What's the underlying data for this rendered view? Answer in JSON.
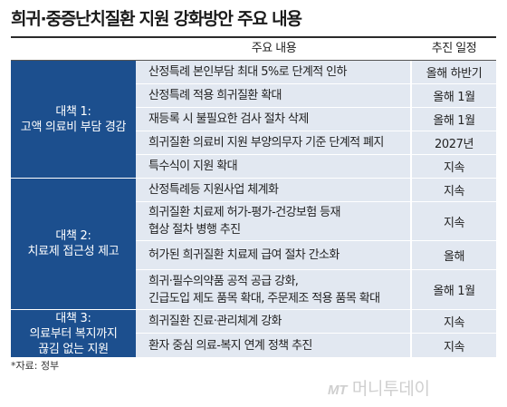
{
  "title": "희귀·중증난치질환 지원 강화방안 주요 내용",
  "header": {
    "content": "주요 내용",
    "schedule": "추진 일정"
  },
  "categories": [
    {
      "label": "대책 1:\n고액 의료비 부담 경감"
    },
    {
      "label": "대책 2:\n치료제 접근성 제고"
    },
    {
      "label": "대책 3:\n의료부터 복지까지\n끊김 없는 지원"
    }
  ],
  "rows": [
    {
      "content": "산정특례 본인부담 최대 5%로 단계적 인하",
      "schedule": "올해 하반기"
    },
    {
      "content": "산정특례 적용 희귀질환 확대",
      "schedule": "올해 1월"
    },
    {
      "content": "재등록 시 불필요한 검사 절차 삭제",
      "schedule": "올해 1월"
    },
    {
      "content": "희귀질환 의료비 지원 부양의무자 기준 단계적 폐지",
      "schedule": "2027년"
    },
    {
      "content": "특수식이 지원 확대",
      "schedule": "지속"
    },
    {
      "content": "산정특례등 지원사업 체계화",
      "schedule": "지속"
    },
    {
      "content": "희귀질환 치료제 허가-평가-건강보험 등재\n협상 절차 병행 추진",
      "schedule": "지속"
    },
    {
      "content": "허가된 희귀질환 치료제 급여 절차 간소화",
      "schedule": "올해"
    },
    {
      "content": "희귀·필수의약품 공적 공급 강화,\n긴급도입 제도 품목 확대, 주문제조 적용 품목 확대",
      "schedule": "올해 1월"
    },
    {
      "content": "희귀질환 진료·관리체계 강화",
      "schedule": "지속"
    },
    {
      "content": "환자 중심 의료-복지 연계 정책 추진",
      "schedule": "지속"
    }
  ],
  "source": "*자료: 정부",
  "logo": {
    "mark": "MT",
    "name": "머니투데이"
  }
}
